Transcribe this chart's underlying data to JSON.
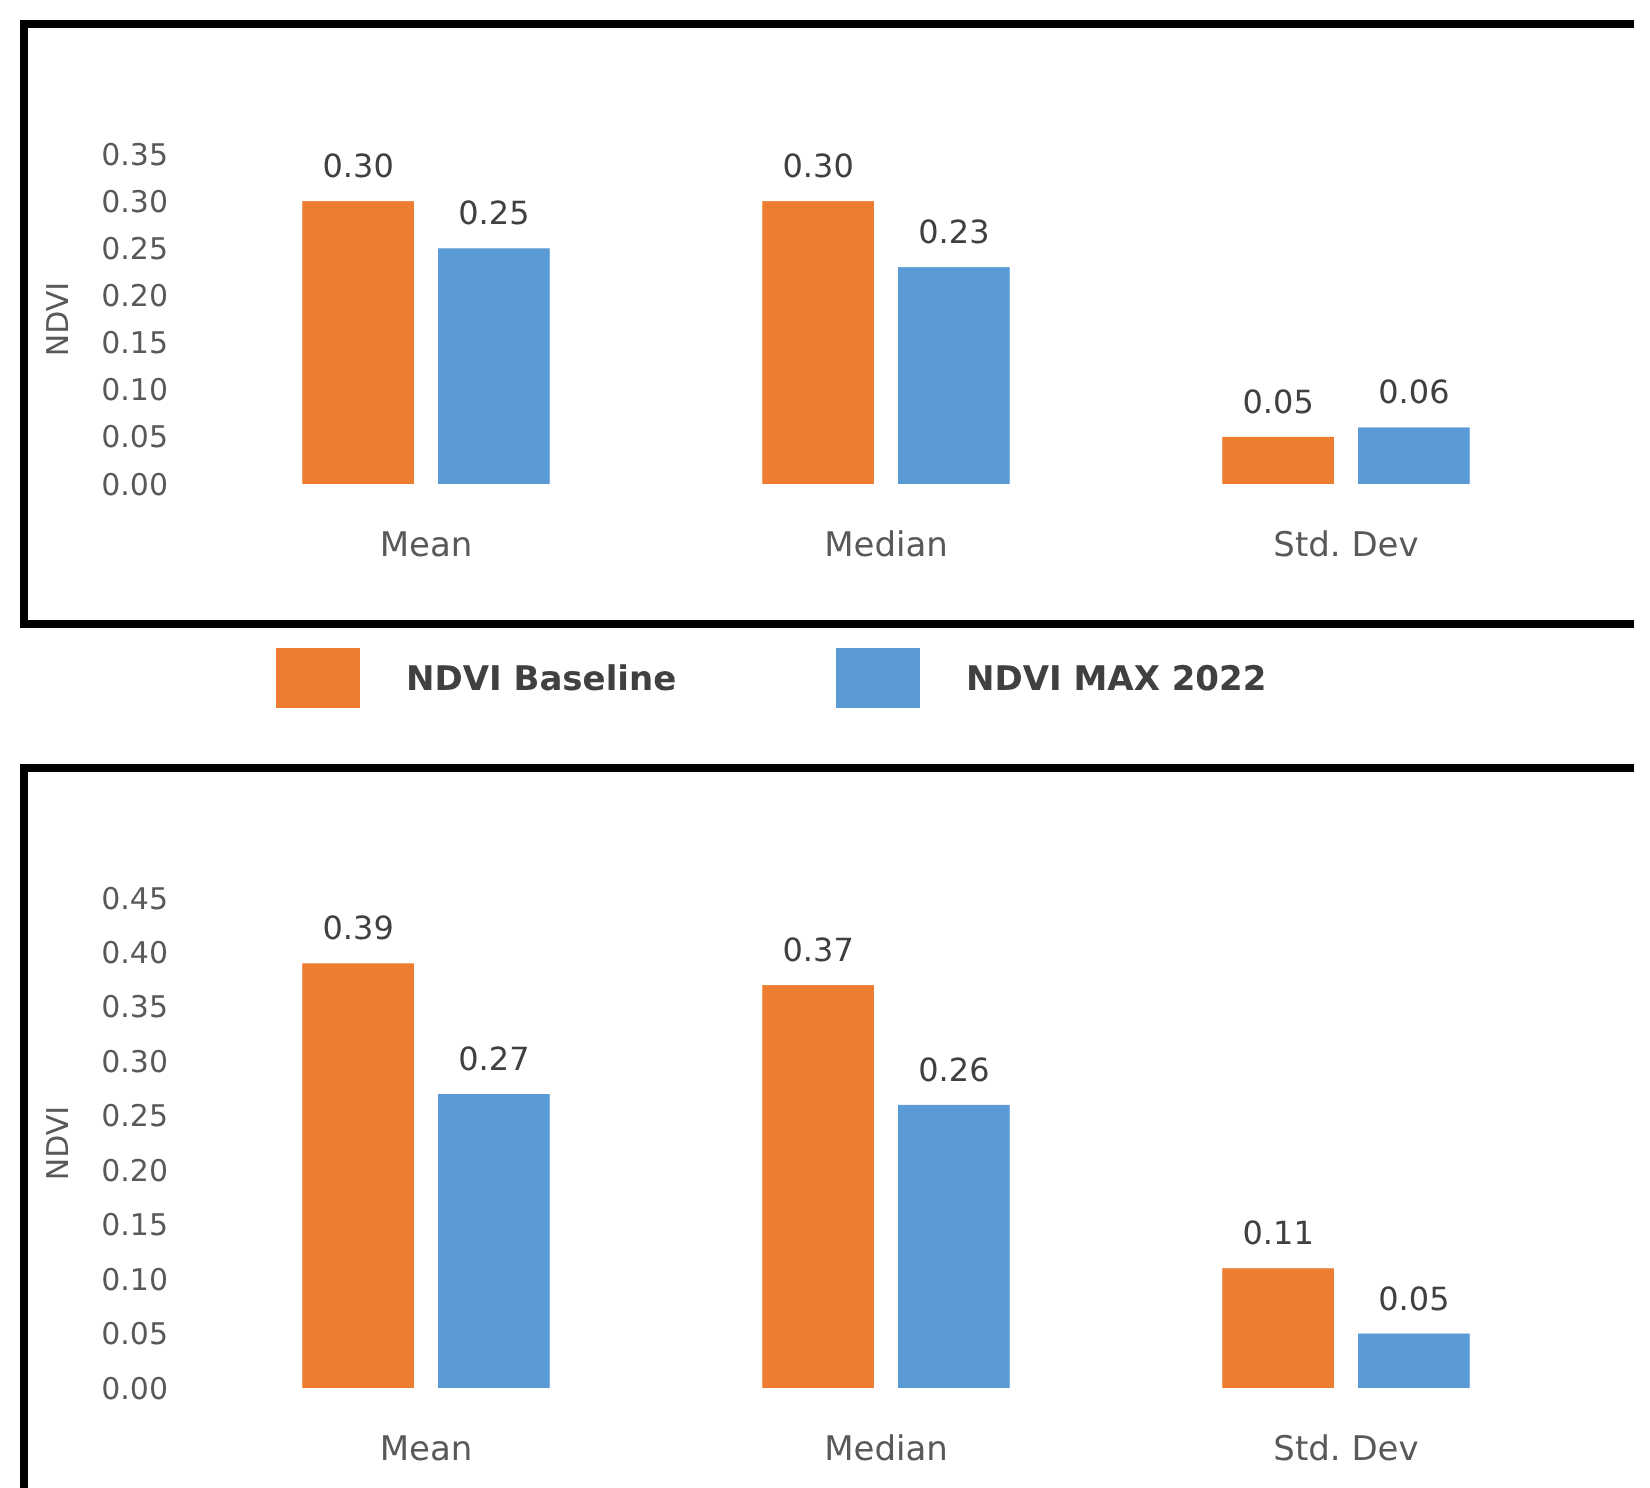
{
  "chart_data": [
    {
      "type": "bar",
      "ylabel": "NDVI",
      "categories": [
        "Mean",
        "Median",
        "Std. Dev"
      ],
      "series": [
        {
          "name": "NDVI Baseline",
          "color": "#ed7d31",
          "values": [
            0.3,
            0.3,
            0.05
          ],
          "value_labels": [
            "0.30",
            "0.30",
            "0.05"
          ]
        },
        {
          "name": "NDVI MAX 2022",
          "color": "#5b9bd5",
          "values": [
            0.25,
            0.23,
            0.06
          ],
          "value_labels": [
            "0.25",
            "0.23",
            "0.06"
          ]
        }
      ],
      "ylim": [
        0,
        0.35
      ],
      "yticks": [
        {
          "value": 0,
          "label": "0.00"
        },
        {
          "value": 0.05,
          "label": "0.05"
        },
        {
          "value": 0.1,
          "label": "0.10"
        },
        {
          "value": 0.15,
          "label": "0.15"
        },
        {
          "value": 0.2,
          "label": "0.20"
        },
        {
          "value": 0.25,
          "label": "0.25"
        },
        {
          "value": 0.3,
          "label": "0.30"
        },
        {
          "value": 0.35,
          "label": "0.35"
        }
      ],
      "grid": false,
      "legend": "bottom"
    },
    {
      "type": "bar",
      "ylabel": "NDVI",
      "categories": [
        "Mean",
        "Median",
        "Std. Dev"
      ],
      "series": [
        {
          "color": "#ed7d31",
          "values": [
            0.39,
            0.37,
            0.11
          ],
          "value_labels": [
            "0.39",
            "0.37",
            "0.11"
          ]
        },
        {
          "color": "#5b9bd5",
          "values": [
            0.27,
            0.26,
            0.05
          ],
          "value_labels": [
            "0.27",
            "0.26",
            "0.05"
          ]
        }
      ],
      "ylim": [
        0,
        0.45
      ],
      "yticks": [
        {
          "value": 0,
          "label": "0.00"
        },
        {
          "value": 0.05,
          "label": "0.05"
        },
        {
          "value": 0.1,
          "label": "0.10"
        },
        {
          "value": 0.15,
          "label": "0.15"
        },
        {
          "value": 0.2,
          "label": "0.20"
        },
        {
          "value": 0.25,
          "label": "0.25"
        },
        {
          "value": 0.3,
          "label": "0.30"
        },
        {
          "value": 0.35,
          "label": "0.35"
        },
        {
          "value": 0.4,
          "label": "0.40"
        },
        {
          "value": 0.45,
          "label": "0.45"
        }
      ],
      "grid": false
    }
  ]
}
